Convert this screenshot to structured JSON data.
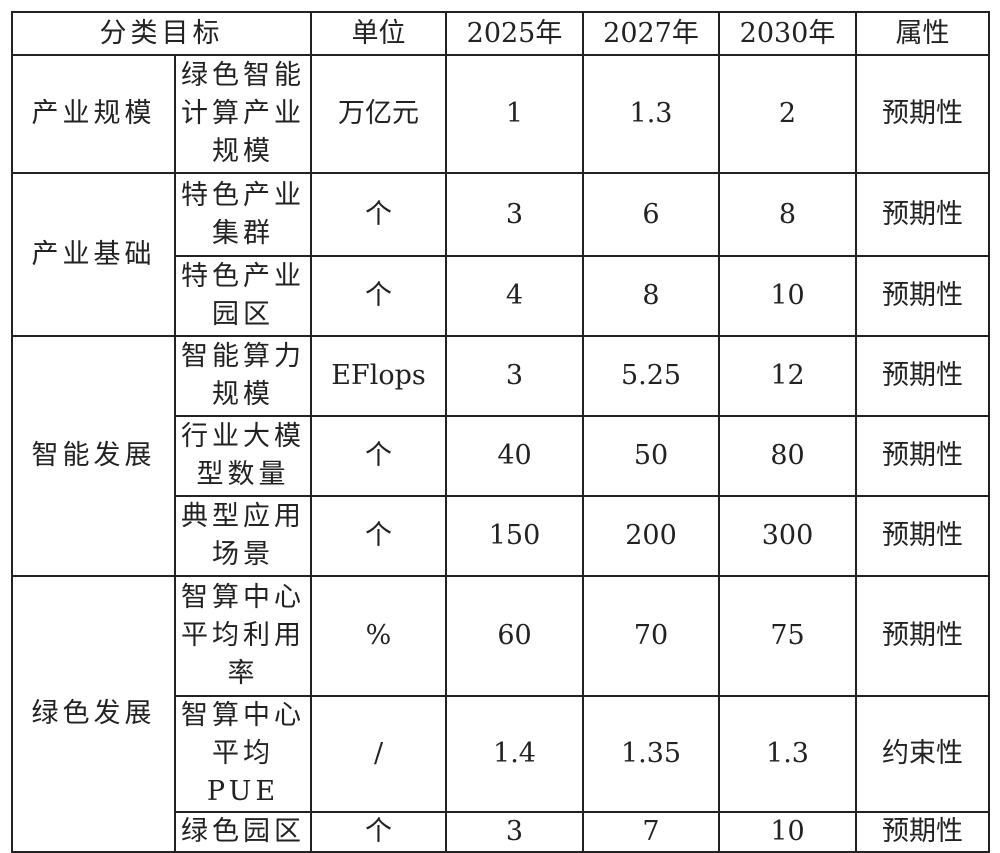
{
  "headers": [
    "分类目标",
    "单位",
    "2025年",
    "2027年",
    "2030年",
    "属性"
  ],
  "rows": [
    {
      "category": "产业规模",
      "item": "绿色智能计算产业规模",
      "unit": "万亿元",
      "y2025": "1",
      "y2027": "1.3",
      "y2030": "2",
      "attr": "预期性"
    },
    {
      "category": "产业基础",
      "item": "特色产业集群",
      "unit": "个",
      "y2025": "3",
      "y2027": "6",
      "y2030": "8",
      "attr": "预期性"
    },
    {
      "item": "特色产业园区",
      "unit": "个",
      "y2025": "4",
      "y2027": "8",
      "y2030": "10",
      "attr": "预期性"
    },
    {
      "category": "智能发展",
      "item": "智能算力规模",
      "unit": "EFlops",
      "y2025": "3",
      "y2027": "5.25",
      "y2030": "12",
      "attr": "预期性"
    },
    {
      "item": "行业大模型数量",
      "unit": "个",
      "y2025": "40",
      "y2027": "50",
      "y2030": "80",
      "attr": "预期性"
    },
    {
      "item": "典型应用场景",
      "unit": "个",
      "y2025": "150",
      "y2027": "200",
      "y2030": "300",
      "attr": "预期性"
    },
    {
      "category": "绿色发展",
      "item": "智算中心平均利用率",
      "unit": "%",
      "y2025": "60",
      "y2027": "70",
      "y2030": "75",
      "attr": "预期性"
    },
    {
      "item": "智算中心平均PUE",
      "unit": "/",
      "y2025": "1.4",
      "y2027": "1.35",
      "y2030": "1.3",
      "attr": "约束性"
    },
    {
      "item": "绿色园区",
      "unit": "个",
      "y2025": "3",
      "y2027": "7",
      "y2030": "10",
      "attr": "预期性"
    }
  ]
}
